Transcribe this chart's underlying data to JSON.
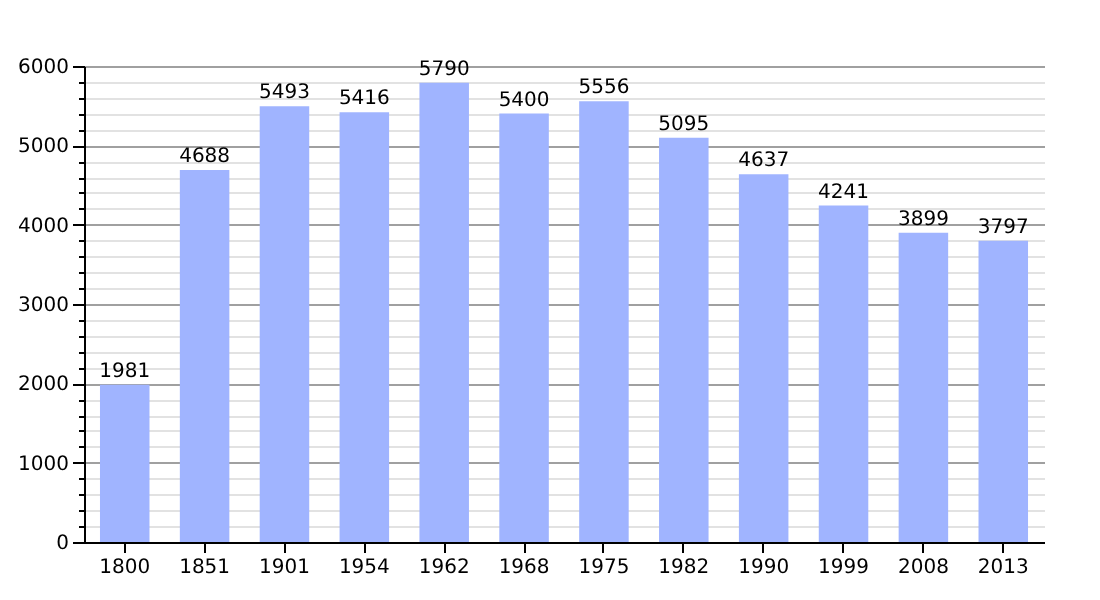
{
  "chart_data": {
    "type": "bar",
    "categories": [
      "1800",
      "1851",
      "1901",
      "1954",
      "1962",
      "1968",
      "1975",
      "1982",
      "1990",
      "1999",
      "2008",
      "2013"
    ],
    "values": [
      1981,
      4688,
      5493,
      5416,
      5790,
      5400,
      5556,
      5095,
      4637,
      4241,
      3899,
      3797
    ],
    "color": "#a0b4ff",
    "ylim": [
      0,
      6000
    ],
    "yticks": [
      0,
      {
        "value": 200,
        "label": null
      },
      {
        "value": 400,
        "label": null
      },
      {
        "value": 600,
        "label": null
      },
      {
        "value": 800,
        "label": null
      },
      1000,
      {
        "value": 1200,
        "label": null
      },
      {
        "value": 1400,
        "label": null
      },
      {
        "value": 1600,
        "label": null
      },
      {
        "value": 1800,
        "label": null
      },
      2000,
      {
        "value": 2200,
        "label": null
      },
      {
        "value": 2400,
        "label": null
      },
      {
        "value": 2600,
        "label": null
      },
      {
        "value": 2800,
        "label": null
      },
      3000,
      {
        "value": 3200,
        "label": null
      },
      {
        "value": 3400,
        "label": null
      },
      {
        "value": 3600,
        "label": null
      },
      {
        "value": 3800,
        "label": null
      },
      4000,
      {
        "value": 4200,
        "label": null
      },
      {
        "value": 4400,
        "label": null
      },
      {
        "value": 4600,
        "label": null
      },
      {
        "value": 4800,
        "label": null
      },
      5000,
      {
        "value": 5200,
        "label": null
      },
      {
        "value": 5400,
        "label": null
      },
      {
        "value": 5600,
        "label": null
      },
      {
        "value": 5800,
        "label": null
      },
      6000
    ],
    "grid": "y",
    "data_labels": true
  }
}
